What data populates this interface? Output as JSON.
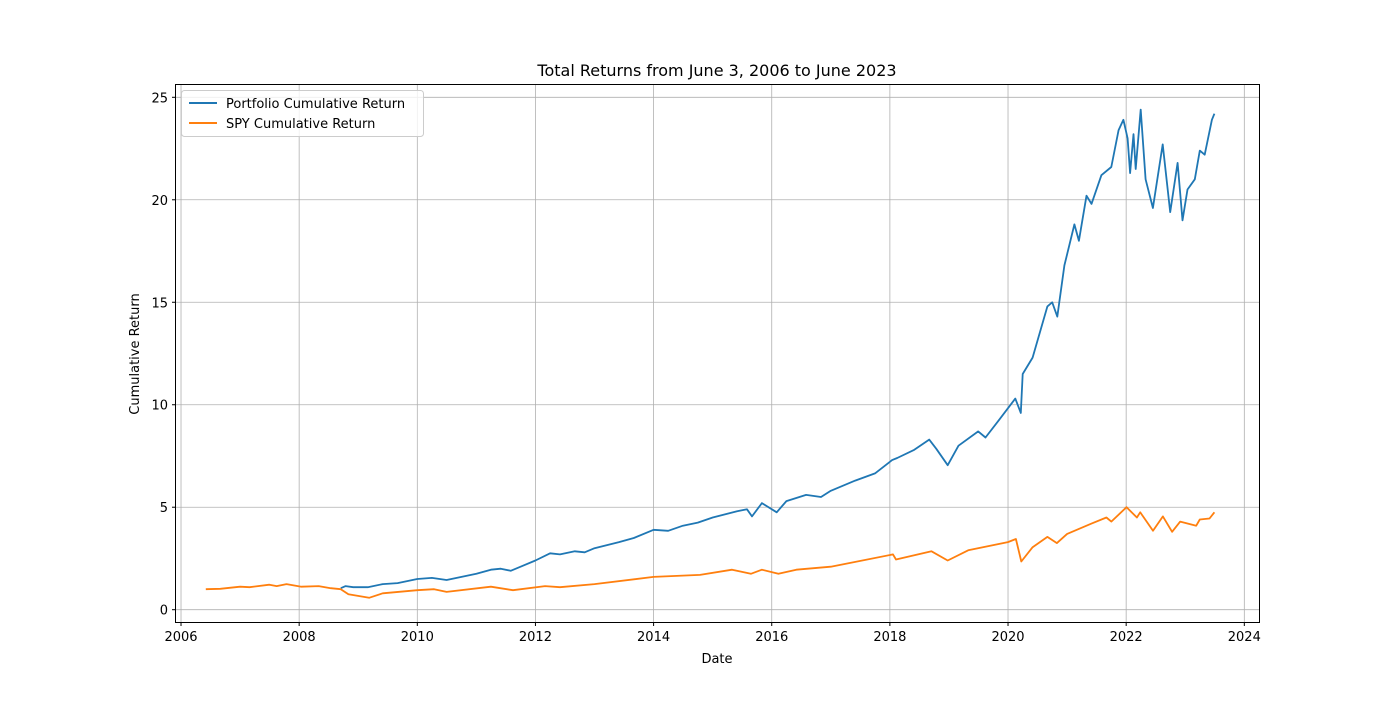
{
  "chart_data": {
    "type": "line",
    "title": "Total Returns from June 3, 2006 to June 2023",
    "xlabel": "Date",
    "ylabel": "Cumulative Return",
    "xlim": [
      "2005-12-01",
      "2024-04-01"
    ],
    "ylim": [
      -0.6,
      25.6
    ],
    "x_ticks": [
      "2006",
      "2008",
      "2010",
      "2012",
      "2014",
      "2016",
      "2018",
      "2020",
      "2022",
      "2024"
    ],
    "y_ticks": [
      "0",
      "5",
      "10",
      "15",
      "20",
      "25"
    ],
    "grid": true,
    "legend_position": "top-left",
    "series": [
      {
        "name": "Portfolio Cumulative Return",
        "color": "#1f77b4",
        "points": [
          [
            "2008-09-15",
            1.05
          ],
          [
            "2008-10-15",
            1.15
          ],
          [
            "2008-12-01",
            1.1
          ],
          [
            "2009-03-01",
            1.1
          ],
          [
            "2009-06-01",
            1.25
          ],
          [
            "2009-09-01",
            1.3
          ],
          [
            "2010-01-01",
            1.5
          ],
          [
            "2010-04-01",
            1.55
          ],
          [
            "2010-07-01",
            1.45
          ],
          [
            "2010-10-01",
            1.6
          ],
          [
            "2011-01-01",
            1.75
          ],
          [
            "2011-04-01",
            1.95
          ],
          [
            "2011-06-01",
            2.0
          ],
          [
            "2011-08-01",
            1.9
          ],
          [
            "2011-10-01",
            2.1
          ],
          [
            "2012-01-01",
            2.4
          ],
          [
            "2012-04-01",
            2.75
          ],
          [
            "2012-06-01",
            2.7
          ],
          [
            "2012-09-01",
            2.85
          ],
          [
            "2012-11-01",
            2.8
          ],
          [
            "2013-01-01",
            3.0
          ],
          [
            "2013-06-01",
            3.3
          ],
          [
            "2013-09-01",
            3.5
          ],
          [
            "2014-01-01",
            3.9
          ],
          [
            "2014-04-01",
            3.85
          ],
          [
            "2014-07-01",
            4.1
          ],
          [
            "2014-10-01",
            4.25
          ],
          [
            "2015-01-01",
            4.5
          ],
          [
            "2015-06-01",
            4.8
          ],
          [
            "2015-08-01",
            4.9
          ],
          [
            "2015-09-01",
            4.55
          ],
          [
            "2015-11-01",
            5.2
          ],
          [
            "2016-02-01",
            4.75
          ],
          [
            "2016-04-01",
            5.3
          ],
          [
            "2016-08-01",
            5.6
          ],
          [
            "2016-11-01",
            5.5
          ],
          [
            "2017-01-01",
            5.8
          ],
          [
            "2017-06-01",
            6.3
          ],
          [
            "2017-10-01",
            6.65
          ],
          [
            "2018-01-15",
            7.3
          ],
          [
            "2018-02-15",
            7.4
          ],
          [
            "2018-06-01",
            7.8
          ],
          [
            "2018-09-01",
            8.3
          ],
          [
            "2018-10-15",
            7.85
          ],
          [
            "2018-12-24",
            7.05
          ],
          [
            "2019-03-01",
            8.0
          ],
          [
            "2019-07-01",
            8.7
          ],
          [
            "2019-08-15",
            8.4
          ],
          [
            "2019-11-01",
            9.2
          ],
          [
            "2020-02-15",
            10.3
          ],
          [
            "2020-03-20",
            9.6
          ],
          [
            "2020-04-01",
            11.5
          ],
          [
            "2020-06-01",
            12.3
          ],
          [
            "2020-09-01",
            14.8
          ],
          [
            "2020-10-01",
            15.0
          ],
          [
            "2020-11-01",
            14.3
          ],
          [
            "2020-12-15",
            16.8
          ],
          [
            "2021-02-15",
            18.8
          ],
          [
            "2021-03-15",
            18.0
          ],
          [
            "2021-05-01",
            20.2
          ],
          [
            "2021-06-01",
            19.8
          ],
          [
            "2021-08-01",
            21.2
          ],
          [
            "2021-10-01",
            21.6
          ],
          [
            "2021-11-15",
            23.4
          ],
          [
            "2021-12-15",
            23.9
          ],
          [
            "2022-01-10",
            23.0
          ],
          [
            "2022-01-25",
            21.3
          ],
          [
            "2022-02-15",
            23.2
          ],
          [
            "2022-03-01",
            21.5
          ],
          [
            "2022-04-01",
            24.4
          ],
          [
            "2022-05-01",
            21.0
          ],
          [
            "2022-06-15",
            19.6
          ],
          [
            "2022-08-15",
            22.7
          ],
          [
            "2022-09-30",
            19.4
          ],
          [
            "2022-11-15",
            21.8
          ],
          [
            "2022-12-15",
            19.0
          ],
          [
            "2023-01-15",
            20.5
          ],
          [
            "2023-03-01",
            21.0
          ],
          [
            "2023-04-01",
            22.4
          ],
          [
            "2023-05-01",
            22.2
          ],
          [
            "2023-06-15",
            23.9
          ],
          [
            "2023-06-30",
            24.2
          ]
        ]
      },
      {
        "name": "SPY Cumulative Return",
        "color": "#ff7f0e",
        "points": [
          [
            "2006-06-03",
            1.0
          ],
          [
            "2006-09-01",
            1.02
          ],
          [
            "2007-01-01",
            1.12
          ],
          [
            "2007-03-01",
            1.1
          ],
          [
            "2007-07-01",
            1.22
          ],
          [
            "2007-08-15",
            1.15
          ],
          [
            "2007-10-15",
            1.25
          ],
          [
            "2008-01-15",
            1.12
          ],
          [
            "2008-05-01",
            1.15
          ],
          [
            "2008-07-15",
            1.05
          ],
          [
            "2008-09-15",
            1.0
          ],
          [
            "2008-11-01",
            0.75
          ],
          [
            "2009-03-09",
            0.58
          ],
          [
            "2009-06-01",
            0.8
          ],
          [
            "2010-01-01",
            0.95
          ],
          [
            "2010-04-15",
            1.0
          ],
          [
            "2010-07-01",
            0.87
          ],
          [
            "2011-04-01",
            1.12
          ],
          [
            "2011-08-15",
            0.95
          ],
          [
            "2012-03-01",
            1.15
          ],
          [
            "2012-06-01",
            1.1
          ],
          [
            "2013-01-01",
            1.25
          ],
          [
            "2014-01-01",
            1.6
          ],
          [
            "2014-10-15",
            1.7
          ],
          [
            "2015-05-01",
            1.95
          ],
          [
            "2015-08-25",
            1.75
          ],
          [
            "2015-11-01",
            1.95
          ],
          [
            "2016-02-11",
            1.75
          ],
          [
            "2016-06-01",
            1.95
          ],
          [
            "2017-01-01",
            2.1
          ],
          [
            "2018-01-20",
            2.7
          ],
          [
            "2018-02-08",
            2.45
          ],
          [
            "2018-09-15",
            2.85
          ],
          [
            "2018-12-24",
            2.4
          ],
          [
            "2019-04-30",
            2.9
          ],
          [
            "2019-12-31",
            3.3
          ],
          [
            "2020-02-19",
            3.45
          ],
          [
            "2020-03-23",
            2.35
          ],
          [
            "2020-06-01",
            3.05
          ],
          [
            "2020-09-01",
            3.55
          ],
          [
            "2020-10-30",
            3.25
          ],
          [
            "2021-01-01",
            3.7
          ],
          [
            "2021-06-01",
            4.2
          ],
          [
            "2021-09-01",
            4.5
          ],
          [
            "2021-10-01",
            4.3
          ],
          [
            "2022-01-03",
            5.0
          ],
          [
            "2022-03-08",
            4.5
          ],
          [
            "2022-03-29",
            4.75
          ],
          [
            "2022-06-16",
            3.85
          ],
          [
            "2022-08-16",
            4.55
          ],
          [
            "2022-10-12",
            3.8
          ],
          [
            "2022-12-01",
            4.3
          ],
          [
            "2023-03-10",
            4.1
          ],
          [
            "2023-04-01",
            4.4
          ],
          [
            "2023-05-31",
            4.45
          ],
          [
            "2023-06-30",
            4.75
          ]
        ]
      }
    ]
  }
}
